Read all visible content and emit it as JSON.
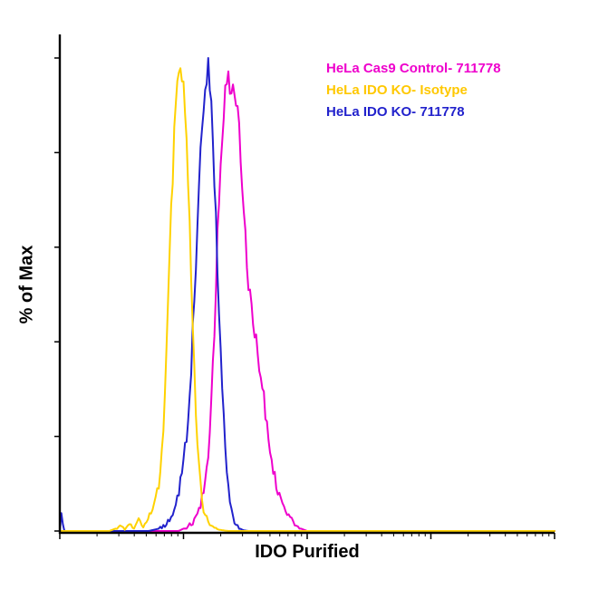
{
  "chart_data": {
    "type": "line",
    "subtype": "flow-cytometry-histogram-overlay",
    "title": "",
    "xlabel": "IDO Purified",
    "ylabel": "% of Max",
    "ylim": [
      0,
      100
    ],
    "x_axis": {
      "scale": "log",
      "decades": 4,
      "tick_labels": []
    },
    "grid": false,
    "legend_position": "top-right",
    "legend_items": [
      {
        "label": "HeLa Cas9 Control- 711778",
        "color": "#EE00CC"
      },
      {
        "label": "HeLa IDO KO- Isotype",
        "color": "#FFC800"
      },
      {
        "label": "HeLa IDO KO- 711778",
        "color": "#2222CC"
      }
    ],
    "axis_color": "#000000",
    "noise": {
      "seed": 12,
      "amplitude": 4
    },
    "series": [
      {
        "name": "HeLa Cas9 Control- 711778",
        "color": "#EE00CC",
        "points": [
          [
            0,
            0
          ],
          [
            0.24,
            0
          ],
          [
            0.26,
            1
          ],
          [
            0.27,
            2
          ],
          [
            0.28,
            4
          ],
          [
            0.29,
            8
          ],
          [
            0.3,
            15
          ],
          [
            0.305,
            24
          ],
          [
            0.31,
            35
          ],
          [
            0.315,
            50
          ],
          [
            0.32,
            65
          ],
          [
            0.325,
            78
          ],
          [
            0.33,
            88
          ],
          [
            0.335,
            96
          ],
          [
            0.34,
            100
          ],
          [
            0.345,
            92
          ],
          [
            0.35,
            97
          ],
          [
            0.355,
            88
          ],
          [
            0.36,
            92
          ],
          [
            0.365,
            80
          ],
          [
            0.37,
            72
          ],
          [
            0.375,
            62
          ],
          [
            0.38,
            55
          ],
          [
            0.385,
            50
          ],
          [
            0.39,
            46
          ],
          [
            0.4,
            38
          ],
          [
            0.41,
            30
          ],
          [
            0.415,
            26
          ],
          [
            0.42,
            21
          ],
          [
            0.43,
            14
          ],
          [
            0.44,
            9
          ],
          [
            0.45,
            6
          ],
          [
            0.46,
            4
          ],
          [
            0.47,
            2
          ],
          [
            0.48,
            0.8
          ],
          [
            0.5,
            0
          ],
          [
            1,
            0
          ]
        ]
      },
      {
        "name": "HeLa IDO KO- 711778",
        "color": "#2222CC",
        "points": [
          [
            0,
            0
          ],
          [
            0.004,
            4
          ],
          [
            0.008,
            0
          ],
          [
            0.18,
            0
          ],
          [
            0.2,
            0.5
          ],
          [
            0.21,
            1
          ],
          [
            0.22,
            2
          ],
          [
            0.23,
            4
          ],
          [
            0.24,
            8
          ],
          [
            0.25,
            14
          ],
          [
            0.26,
            24
          ],
          [
            0.265,
            33
          ],
          [
            0.27,
            45
          ],
          [
            0.275,
            58
          ],
          [
            0.28,
            70
          ],
          [
            0.285,
            80
          ],
          [
            0.29,
            90
          ],
          [
            0.295,
            97
          ],
          [
            0.3,
            100
          ],
          [
            0.305,
            94
          ],
          [
            0.31,
            82
          ],
          [
            0.315,
            68
          ],
          [
            0.32,
            52
          ],
          [
            0.325,
            38
          ],
          [
            0.33,
            26
          ],
          [
            0.335,
            17
          ],
          [
            0.34,
            10
          ],
          [
            0.345,
            6
          ],
          [
            0.35,
            3
          ],
          [
            0.355,
            1.5
          ],
          [
            0.36,
            0.8
          ],
          [
            0.37,
            0.2
          ],
          [
            0.38,
            0
          ],
          [
            1,
            0
          ]
        ]
      },
      {
        "name": "HeLa IDO KO- Isotype",
        "color": "#FFD200",
        "points": [
          [
            0,
            0
          ],
          [
            0.1,
            0
          ],
          [
            0.125,
            1
          ],
          [
            0.13,
            0.3
          ],
          [
            0.14,
            2
          ],
          [
            0.15,
            0.5
          ],
          [
            0.16,
            2.5
          ],
          [
            0.17,
            1
          ],
          [
            0.18,
            3
          ],
          [
            0.19,
            6
          ],
          [
            0.2,
            10
          ],
          [
            0.21,
            22
          ],
          [
            0.215,
            35
          ],
          [
            0.22,
            52
          ],
          [
            0.225,
            68
          ],
          [
            0.23,
            80
          ],
          [
            0.235,
            90
          ],
          [
            0.24,
            97
          ],
          [
            0.245,
            100
          ],
          [
            0.25,
            96
          ],
          [
            0.255,
            88
          ],
          [
            0.26,
            72
          ],
          [
            0.265,
            55
          ],
          [
            0.27,
            38
          ],
          [
            0.275,
            25
          ],
          [
            0.28,
            15
          ],
          [
            0.285,
            9
          ],
          [
            0.29,
            5
          ],
          [
            0.3,
            2
          ],
          [
            0.31,
            0.8
          ],
          [
            0.32,
            0.3
          ],
          [
            0.34,
            0
          ],
          [
            1,
            0
          ]
        ]
      }
    ]
  }
}
